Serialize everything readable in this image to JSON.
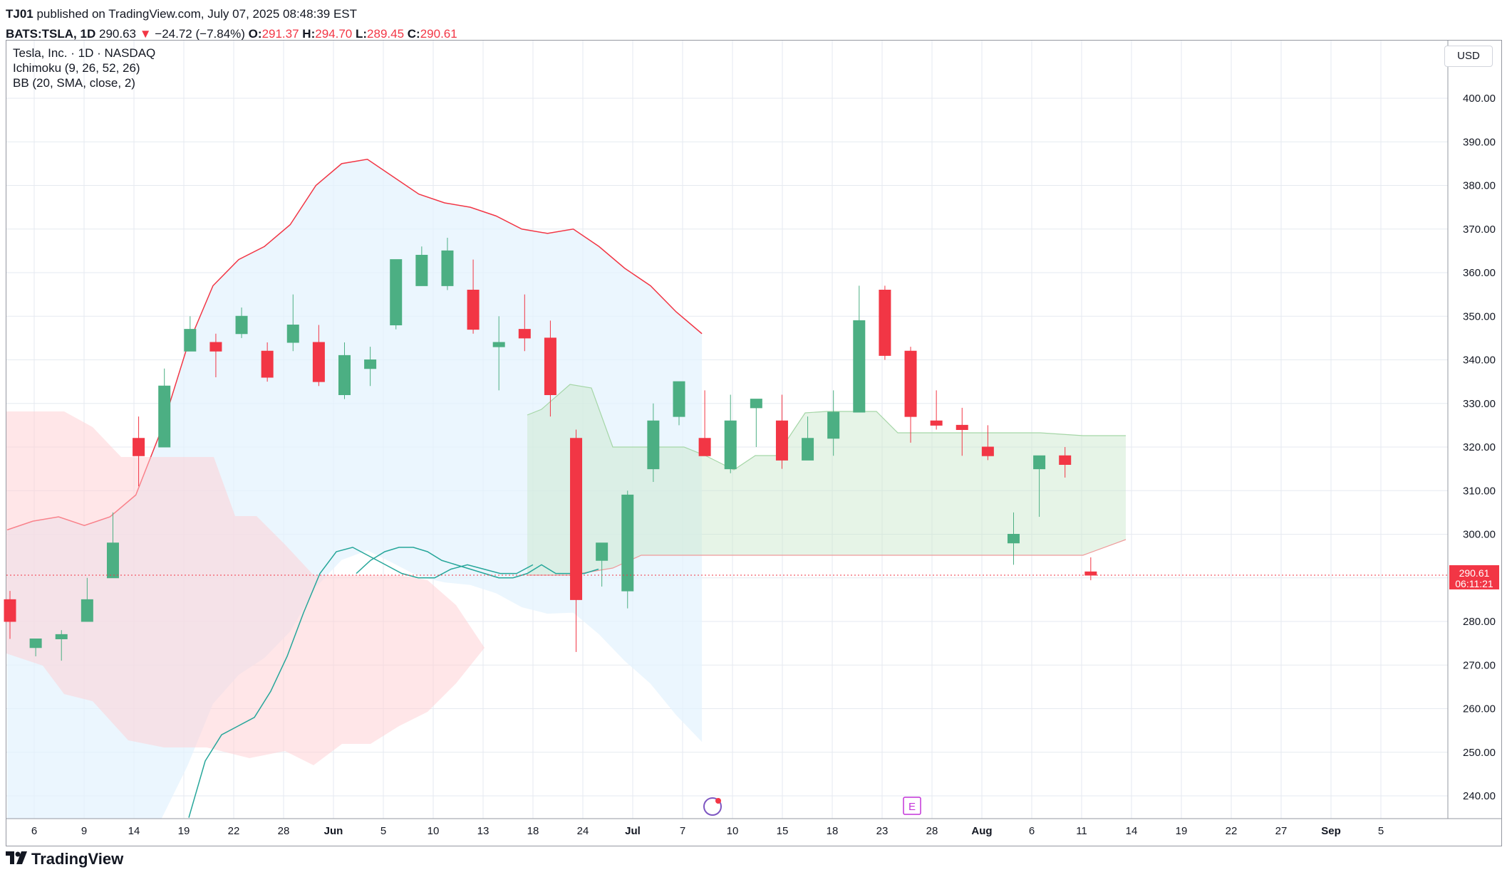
{
  "header": {
    "publisher_user": "TJ01",
    "publisher_rest": " published on TradingView.com, July 07, 2025 08:48:39 EST",
    "symbol": "BATS:TSLA, 1D",
    "last": "290.63",
    "change": "−24.72 (−7.84%)",
    "o_label": "O:",
    "o_val": "291.37",
    "h_label": "H:",
    "h_val": "294.70",
    "l_label": "L:",
    "l_val": "289.45",
    "c_label": "C:",
    "c_val": "290.61"
  },
  "legend": {
    "title": "Tesla, Inc. · 1D · NASDAQ",
    "ichimoku": "Ichimoku (9, 26, 52, 26)",
    "bb": "BB (20, SMA, close, 2)"
  },
  "currency": "USD",
  "footer": {
    "brand": "TradingView",
    "brand_icon": "tradingview-logo-icon"
  },
  "colors": {
    "up": "#4caf83",
    "down": "#f23645",
    "bb_line": "#f23645",
    "bb_fill": "#e3f2fd",
    "cloud_bull": "#c8e6c9",
    "cloud_bear": "#ffcdd2",
    "conversion": "#2962ff",
    "base": "#26a69a",
    "price_line": "#f23645",
    "grid": "#e6eaf0"
  },
  "chart_data": {
    "type": "candlestick",
    "y_axis": {
      "min": 235,
      "max": 410,
      "ticks": [
        240,
        250,
        260,
        270,
        280,
        290,
        300,
        310,
        320,
        330,
        340,
        350,
        360,
        370,
        380,
        390,
        400
      ]
    },
    "x_tick_labels": [
      "6",
      "9",
      "14",
      "19",
      "22",
      "28",
      "Jun",
      "5",
      "10",
      "13",
      "18",
      "24",
      "Jul",
      "7",
      "10",
      "15",
      "18",
      "23",
      "28",
      "Aug",
      "6",
      "11",
      "14",
      "19",
      "22",
      "27",
      "Sep",
      "5"
    ],
    "last_price": {
      "value": "290.61",
      "countdown": "06:11:21"
    },
    "markers": [
      {
        "label": "E",
        "kind": "earnings"
      },
      {
        "label": "",
        "kind": "event-icon"
      }
    ],
    "candles": [
      {
        "o": 285,
        "h": 287,
        "l": 276,
        "c": 280
      },
      {
        "o": 274,
        "h": 276,
        "l": 272,
        "c": 276
      },
      {
        "o": 276,
        "h": 278,
        "l": 271,
        "c": 277
      },
      {
        "o": 280,
        "h": 290,
        "l": 280,
        "c": 285
      },
      {
        "o": 290,
        "h": 305,
        "l": 290,
        "c": 298
      },
      {
        "o": 322,
        "h": 327,
        "l": 311,
        "c": 318
      },
      {
        "o": 320,
        "h": 338,
        "l": 320,
        "c": 334
      },
      {
        "o": 342,
        "h": 350,
        "l": 342,
        "c": 347
      },
      {
        "o": 344,
        "h": 346,
        "l": 336,
        "c": 342
      },
      {
        "o": 346,
        "h": 352,
        "l": 345,
        "c": 350
      },
      {
        "o": 342,
        "h": 344,
        "l": 335,
        "c": 336
      },
      {
        "o": 344,
        "h": 355,
        "l": 342,
        "c": 348
      },
      {
        "o": 344,
        "h": 348,
        "l": 334,
        "c": 335
      },
      {
        "o": 332,
        "h": 344,
        "l": 331,
        "c": 341
      },
      {
        "o": 338,
        "h": 343,
        "l": 334,
        "c": 340
      },
      {
        "o": 348,
        "h": 363,
        "l": 347,
        "c": 363
      },
      {
        "o": 357,
        "h": 366,
        "l": 357,
        "c": 364
      },
      {
        "o": 357,
        "h": 368,
        "l": 356,
        "c": 365
      },
      {
        "o": 356,
        "h": 363,
        "l": 346,
        "c": 347
      },
      {
        "o": 343,
        "h": 350,
        "l": 333,
        "c": 344
      },
      {
        "o": 347,
        "h": 355,
        "l": 342,
        "c": 345
      },
      {
        "o": 345,
        "h": 349,
        "l": 327,
        "c": 332
      },
      {
        "o": 322,
        "h": 324,
        "l": 273,
        "c": 285
      },
      {
        "o": 294,
        "h": 298,
        "l": 288,
        "c": 298
      },
      {
        "o": 287,
        "h": 310,
        "l": 283,
        "c": 309
      },
      {
        "o": 315,
        "h": 330,
        "l": 312,
        "c": 326
      },
      {
        "o": 327,
        "h": 335,
        "l": 325,
        "c": 335
      },
      {
        "o": 322,
        "h": 333,
        "l": 318,
        "c": 318
      },
      {
        "o": 315,
        "h": 332,
        "l": 314,
        "c": 326
      },
      {
        "o": 329,
        "h": 331,
        "l": 320,
        "c": 331
      },
      {
        "o": 326,
        "h": 332,
        "l": 315,
        "c": 317
      },
      {
        "o": 317,
        "h": 327,
        "l": 318,
        "c": 322
      },
      {
        "o": 322,
        "h": 333,
        "l": 318,
        "c": 328
      },
      {
        "o": 328,
        "h": 357,
        "l": 328,
        "c": 349
      },
      {
        "o": 356,
        "h": 357,
        "l": 340,
        "c": 341
      },
      {
        "o": 342,
        "h": 343,
        "l": 321,
        "c": 327
      },
      {
        "o": 326,
        "h": 333,
        "l": 324,
        "c": 325
      },
      {
        "o": 325,
        "h": 329,
        "l": 318,
        "c": 324
      },
      {
        "o": 320,
        "h": 325,
        "l": 317,
        "c": 318
      },
      {
        "o": 298,
        "h": 305,
        "l": 293,
        "c": 300
      },
      {
        "o": 315,
        "h": 318,
        "l": 304,
        "c": 318
      },
      {
        "o": 318,
        "h": 320,
        "l": 313,
        "c": 316
      },
      {
        "o": 291.37,
        "h": 294.7,
        "l": 289.45,
        "c": 290.61
      }
    ],
    "bb_upper": [
      301,
      303,
      304,
      302,
      304,
      309,
      324,
      343,
      357,
      363,
      366,
      371,
      380,
      385,
      386,
      382,
      378,
      376,
      375,
      373,
      370,
      369,
      370,
      366,
      361,
      357,
      351,
      346
    ],
    "conversion_line": [
      235,
      248,
      254,
      256,
      258,
      264,
      272,
      282,
      291,
      296,
      297,
      295,
      293,
      291,
      290,
      290,
      292,
      293,
      292,
      291,
      291,
      293
    ],
    "base_line": [
      291,
      294,
      296,
      297,
      297,
      296,
      294,
      293,
      292,
      291,
      290,
      290,
      291,
      293,
      291,
      291,
      291,
      292
    ]
  }
}
